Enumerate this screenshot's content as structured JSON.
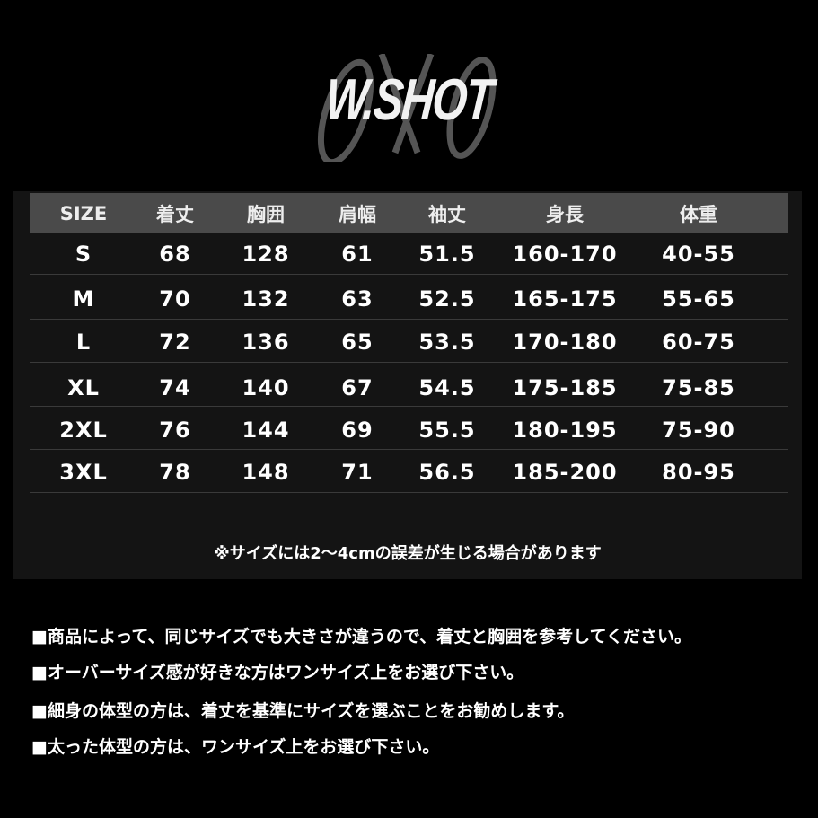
{
  "logo": {
    "text": "W.SHOT"
  },
  "table": {
    "headers": [
      "SIZE",
      "着丈",
      "胸囲",
      "肩幅",
      "袖丈",
      "身長",
      "体重"
    ],
    "rows": [
      [
        "S",
        "68",
        "128",
        "61",
        "51.5",
        "160-170",
        "40-55"
      ],
      [
        "M",
        "70",
        "132",
        "63",
        "52.5",
        "165-175",
        "55-65"
      ],
      [
        "L",
        "72",
        "136",
        "65",
        "53.5",
        "170-180",
        "60-75"
      ],
      [
        "XL",
        "74",
        "140",
        "67",
        "54.5",
        "175-185",
        "75-85"
      ],
      [
        "2XL",
        "76",
        "144",
        "69",
        "55.5",
        "180-195",
        "75-90"
      ],
      [
        "3XL",
        "78",
        "148",
        "71",
        "56.5",
        "185-200",
        "80-95"
      ]
    ],
    "footnote": "※サイズには2～4cmの誤差が生じる場合があります"
  },
  "notes": [
    "■商品によって、同じサイズでも大きさが違うので、着丈と胸囲を参考してください。",
    "■オーバーサイズ感が好きな方はワンサイズ上をお選び下さい。",
    "■細身の体型の方は、着丈を基準にサイズを選ぶことをお勧めします。",
    "■太った体型の方は、ワンサイズ上をお選び下さい。"
  ],
  "colors": {
    "background": "#000000",
    "panel": "#141414",
    "header": "#4a4a4a",
    "text": "#ffffff"
  }
}
